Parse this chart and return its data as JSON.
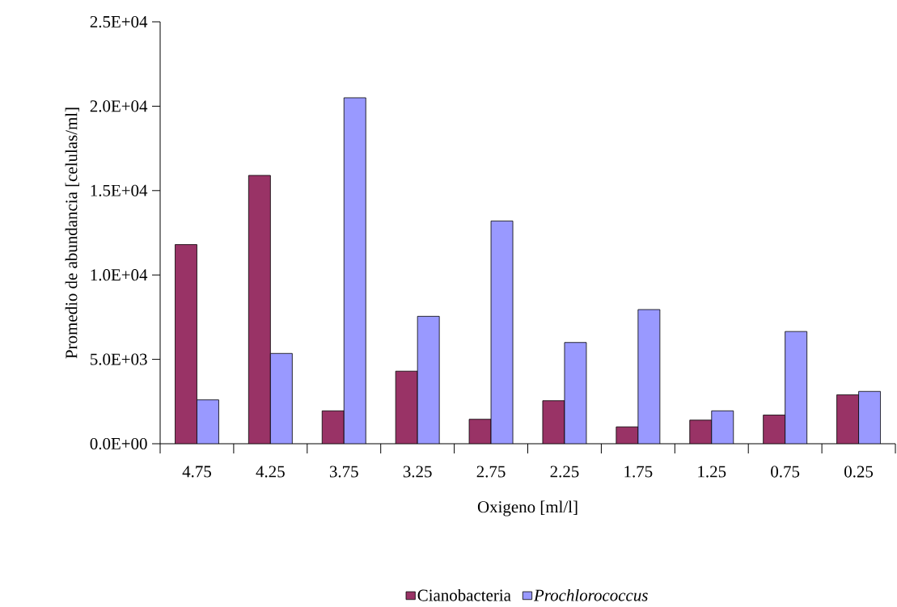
{
  "chart_data": {
    "type": "bar",
    "xlabel": "Oxigeno [ml/l]",
    "ylabel": "Promedio de abundancia [celulas/ml]",
    "categories": [
      "4.75",
      "4.25",
      "3.75",
      "3.25",
      "2.75",
      "2.25",
      "1.75",
      "1.25",
      "0.75",
      "0.25"
    ],
    "series": [
      {
        "name": "Cianobacteria",
        "color": "#993366",
        "values": [
          11800,
          15900,
          1950,
          4300,
          1450,
          2550,
          1000,
          1400,
          1700,
          2900
        ]
      },
      {
        "name": "*Prochlorococcus*",
        "color": "#9999ff",
        "values": [
          2600,
          5350,
          20500,
          7550,
          13200,
          6000,
          7950,
          1950,
          6650,
          3100
        ]
      }
    ],
    "ylim": [
      0,
      25000
    ],
    "yticks": [
      {
        "value": 0,
        "label": "0.0E+00"
      },
      {
        "value": 5000,
        "label": "5.0E+03"
      },
      {
        "value": 10000,
        "label": "1.0E+04"
      },
      {
        "value": 15000,
        "label": "1.5E+04"
      },
      {
        "value": 20000,
        "label": "2.0E+04"
      },
      {
        "value": 25000,
        "label": "2.5E+04"
      }
    ],
    "grid": false,
    "legend": "bottom"
  }
}
